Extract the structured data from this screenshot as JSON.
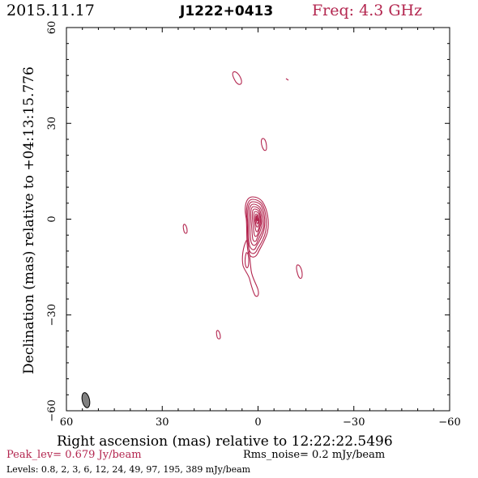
{
  "header": {
    "date": "2015.11.17",
    "source": "J1222+0413",
    "freq": "Freq: 4.3 GHz"
  },
  "footer": {
    "peak": "Peak_lev=  0.679 Jy/beam",
    "rms": "Rms_noise=  0.2 mJy/beam",
    "levels": "Levels: 0.8,   2,   3,   6,  12,  24,  49,  97, 195, 389 mJy/beam"
  },
  "colors": {
    "contour": "#b3264f",
    "axis": "#000000",
    "beam_fill": "#808080"
  },
  "chart_data": {
    "type": "contour",
    "xlabel": "Right ascension (mas) relative to 12:22:22.5496",
    "ylabel": "Declination (mas) relative to +04:13:15.776",
    "xlim": [
      60,
      -60
    ],
    "ylim": [
      -60,
      60
    ],
    "xticks": [
      60,
      30,
      0,
      -30,
      -60
    ],
    "yticks": [
      60,
      30,
      0,
      -30,
      -60
    ],
    "xtick_labels": [
      "60",
      "30",
      "0",
      "−30",
      "−60"
    ],
    "ytick_labels": [
      "60",
      "30",
      "0",
      "−30",
      "−60"
    ],
    "units": "mas",
    "levels_mJy": [
      0.8,
      2,
      3,
      6,
      12,
      24,
      49,
      97,
      195,
      389
    ],
    "peak_Jy_per_beam": 0.679,
    "rms_mJy_per_beam": 0.2,
    "core": {
      "x": 0,
      "y": 0
    },
    "features": [
      {
        "x": 6.5,
        "y": 44
      },
      {
        "x": -9.5,
        "y": 43
      },
      {
        "x": -2.5,
        "y": 23
      },
      {
        "x": 23,
        "y": -3
      },
      {
        "x": 3.5,
        "y": -12
      },
      {
        "x": 3,
        "y": -17
      },
      {
        "x": 1,
        "y": -22
      },
      {
        "x": -13,
        "y": -16
      },
      {
        "x": 12,
        "y": -36
      }
    ],
    "beam": {
      "x": 56.5,
      "y": -56.5
    }
  }
}
